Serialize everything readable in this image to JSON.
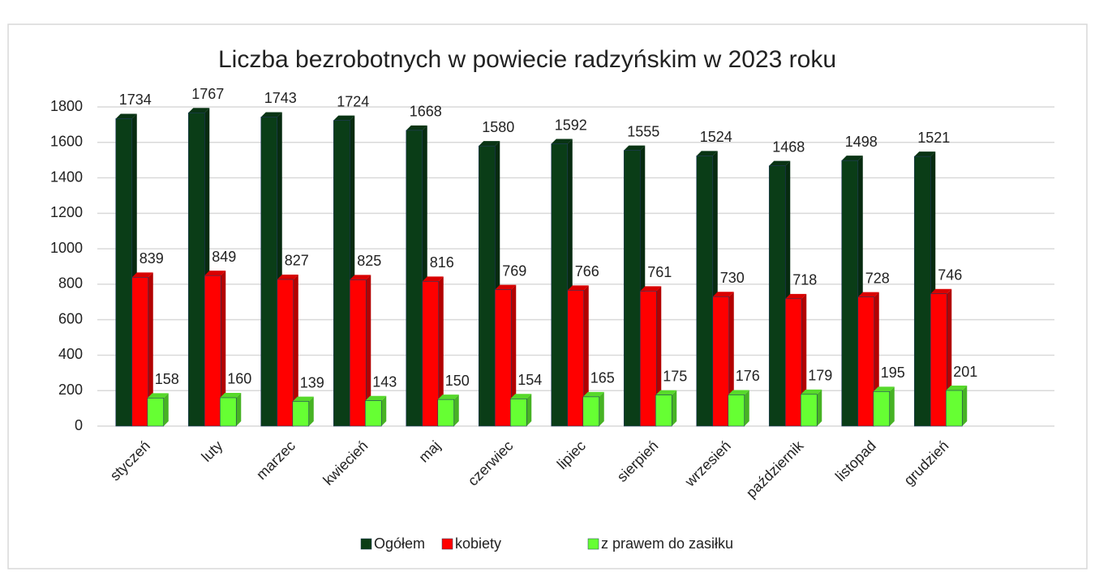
{
  "chart_data": {
    "type": "bar3d",
    "title": "Liczba bezrobotnych w powiecie radzyńskim w  2023  roku",
    "categories": [
      "styczeń",
      "luty",
      "marzec",
      "kwiecień",
      "maj",
      "czerwiec",
      "lipiec",
      "sierpień",
      "wrzesień",
      "październik",
      "listopad",
      "grudzień"
    ],
    "series": [
      {
        "name": "Ogółem",
        "color": "#0a3d17",
        "values": [
          1734,
          1767,
          1743,
          1724,
          1668,
          1580,
          1592,
          1555,
          1524,
          1468,
          1498,
          1521
        ]
      },
      {
        "name": "kobiety",
        "color": "#ff0000",
        "values": [
          839,
          849,
          827,
          825,
          816,
          769,
          766,
          761,
          730,
          718,
          728,
          746
        ]
      },
      {
        "name": "z prawem do zasiłku",
        "color": "#66ff33",
        "values": [
          158,
          160,
          139,
          143,
          150,
          154,
          165,
          175,
          176,
          179,
          195,
          201
        ]
      }
    ],
    "ylim": [
      0,
      1800
    ],
    "yticks": [
      0,
      200,
      400,
      600,
      800,
      1000,
      1200,
      1400,
      1600,
      1800
    ],
    "grid": true,
    "legend": "bottom"
  }
}
